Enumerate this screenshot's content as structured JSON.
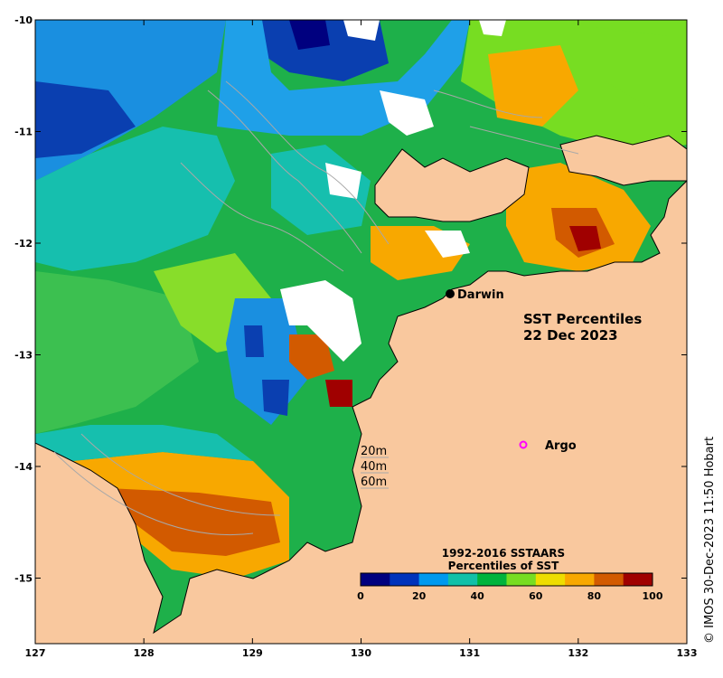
{
  "map": {
    "title_line1": "SST Percentiles",
    "title_line2": "22 Dec 2023",
    "credit": "© IMOS 30-Dec-2023 11:50 Hobart",
    "lon_ticks": [
      "127",
      "128",
      "129",
      "130",
      "131",
      "132",
      "133"
    ],
    "lat_ticks": [
      "-10",
      "-11",
      "-12",
      "-13",
      "-14",
      "-15"
    ],
    "places": [
      {
        "name": "Darwin",
        "lon": 130.85,
        "lat": -12.46
      },
      {
        "name": "Argo",
        "lon": 131.5,
        "lat": -13.81
      }
    ],
    "depth_legend": [
      "20m",
      "40m",
      "60m"
    ],
    "land_color": "#f9c89e",
    "ocean_nodata_color": "#ffffff"
  },
  "colorbar": {
    "title_line1": "1992-2016 SSTAARS",
    "title_line2": "Percentiles of SST",
    "tick_labels": [
      "0",
      "20",
      "40",
      "60",
      "80",
      "100"
    ],
    "colors": [
      "#00007f",
      "#0033bb",
      "#0099ee",
      "#11c0a8",
      "#00b33c",
      "#77dd22",
      "#eedd00",
      "#f8a800",
      "#d25a00",
      "#a00000"
    ]
  }
}
